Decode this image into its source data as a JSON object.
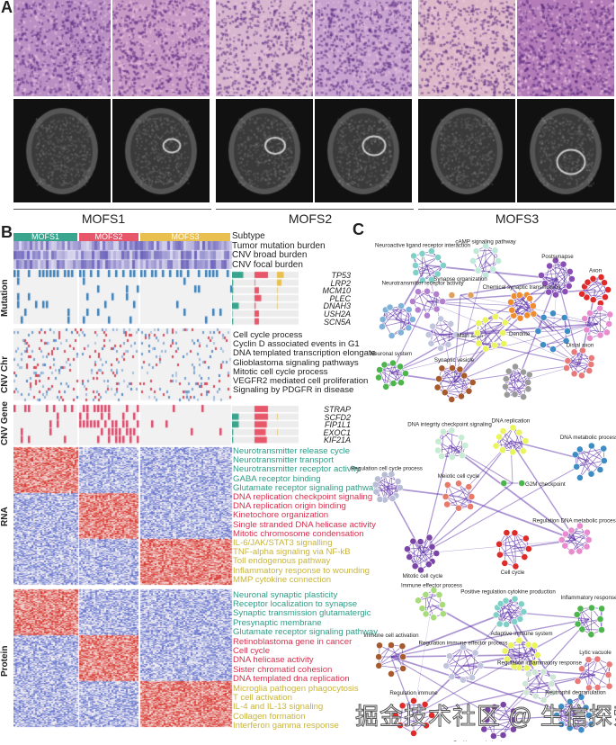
{
  "panels": {
    "a": "A",
    "b": "B",
    "c": "C"
  },
  "subtypes": [
    {
      "name": "MOFS1",
      "color": "#3aa58e"
    },
    {
      "name": "MOFS2",
      "color": "#e8566a"
    },
    {
      "name": "MOFS3",
      "color": "#e9bf4f"
    }
  ],
  "panel_b": {
    "track_labels": [
      "Subtype",
      "Tumor mutation burden",
      "CNV broad burden",
      "CNV focal burden"
    ],
    "section_labels": {
      "mutation": "Mutation",
      "cnv_chr": "CNV Chr",
      "cnv_gene": "CNV Gene",
      "rna": "RNA",
      "protein": "Protein"
    },
    "mutation_genes": [
      "TP53",
      "LRP2",
      "MCM10",
      "PLEC",
      "DNAH3",
      "USH2A",
      "SCN5A"
    ],
    "cnv_chr_pathways": [
      "Cell cycle process",
      "Cyclin D associated events in G1",
      "DNA templated transcription elongate",
      "Glioblastoma signaling pathways",
      "Mitotic cell cycle process",
      "VEGFR2 mediated cell proliferation",
      "Signaling by PDGFR in disease"
    ],
    "cnv_genes": [
      "STRAP",
      "SCFD2",
      "FIP1L1",
      "EXOC1",
      "KIF21A"
    ],
    "rna_pathways": [
      [
        "Neurotransmitter release cycle",
        "Neurotransmitter transport",
        "Neurotransmitter receptor activity",
        "GABA receptor binding",
        "Glutamate receptor signaling pathway"
      ],
      [
        "DNA replication checkpoint signaling",
        "DNA replication origin binding",
        "Kinetochore organization",
        "Single stranded DNA helicase activity",
        "Mitotic chromosome condensation"
      ],
      [
        "IL-6/JAK/STAT3 signalling",
        "TNF-alpha signaling via NF-kB",
        "Toll endogenous pathway",
        "Inflammatory response to wounding",
        "MMP cytokine connection"
      ]
    ],
    "protein_pathways": [
      [
        "Neuronal synaptic plasticity",
        "Receptor localization to synapse",
        "Synaptic transmission glutamatergic",
        "Presynaptic membrane",
        "Glutamate receptor signaling pathway"
      ],
      [
        "Retinoblastoma gene in cancer",
        "Cell cycle",
        "DNA helicase activity",
        "Sister chromatid cohesion",
        "DNA templated dna replication"
      ],
      [
        "Microglia pathogen phagocytosis",
        "T cell activation",
        "IL-4 and IL-13 signaling",
        "Collagen formation",
        "Interferon gamma response"
      ]
    ],
    "text_colors": [
      "#2e9c86",
      "#d9304f",
      "#c9b43c"
    ],
    "heat_colors": {
      "high": "#d73027",
      "low": "#3b4cc0",
      "mut": "#3a7fb8",
      "cnv": "#d94a6a"
    }
  },
  "panel_c": {
    "networks": [
      {
        "clusters": [
          {
            "label": "Neuroactive ligand receptor interaction",
            "color": "#7fd1c8"
          },
          {
            "label": "cAMP signaling pathway",
            "color": "#bfe9d9"
          },
          {
            "label": "Postsynapse",
            "color": "#8a4fb5"
          },
          {
            "label": "Axon",
            "color": "#e02b2b"
          },
          {
            "label": "Synapse organization",
            "color": "#e0a060"
          },
          {
            "label": "Neurotransmitter receptor activity",
            "color": "#b27fcf"
          },
          {
            "label": "",
            "color": "#7fb1d9"
          },
          {
            "label": "Main axon",
            "color": "#c0c4dc"
          },
          {
            "label": "Dendrite",
            "color": "#e9f55a"
          },
          {
            "label": "Chemical synaptic transmission",
            "color": "#ef8c2e"
          },
          {
            "label": "",
            "color": "#3e8cc4"
          },
          {
            "label": "",
            "color": "#e88ccf"
          },
          {
            "label": "Neuronal system",
            "color": "#4cb54c"
          },
          {
            "label": "Synaptic vesicle",
            "color": "#a65a2e"
          },
          {
            "label": "",
            "color": "#9a9a9a"
          },
          {
            "label": "Distal axon",
            "color": "#e87a7a"
          }
        ]
      },
      {
        "clusters": [
          {
            "label": "DNA integrity checkpoint signaling",
            "color": "#c6ecd4"
          },
          {
            "label": "DNA replication",
            "color": "#e9f55a"
          },
          {
            "label": "DNA metabolic process",
            "color": "#3e8cc4"
          },
          {
            "label": "Regulation cell cycle process",
            "color": "#b8bcd4"
          },
          {
            "label": "Meiotic cell cycle",
            "color": "#e87a6a"
          },
          {
            "label": "G2M checkpoint",
            "color": "#4cb54c"
          },
          {
            "label": "Regulation DNA metabolic process",
            "color": "#e88ccf"
          },
          {
            "label": "Mitotic cell cycle",
            "color": "#7b45a8"
          },
          {
            "label": "Cell cycle",
            "color": "#e02b2b"
          }
        ]
      },
      {
        "clusters": [
          {
            "label": "Immune effector process",
            "color": "#a8dc7a"
          },
          {
            "label": "Positive regulation cytokine production",
            "color": "#7fd1c8"
          },
          {
            "label": "Inflammatory response",
            "color": "#4cb54c"
          },
          {
            "label": "Immune cell activation",
            "color": "#a65a2e"
          },
          {
            "label": "Regulation immune effector process",
            "color": "#c0c4dc"
          },
          {
            "label": "Adaptive immune system",
            "color": "#e9f55a"
          },
          {
            "label": "Lytic vacuole",
            "color": "#e87a7a"
          },
          {
            "label": "Regulation inflammatory response",
            "color": "#cfe6d6"
          },
          {
            "label": "Regulation immune",
            "color": "#e02b2b"
          },
          {
            "label": "Positive regulation immune response",
            "color": "#7b45a8"
          },
          {
            "label": "Neutrophil degranulation",
            "color": "#3e8cc4"
          }
        ]
      }
    ],
    "edge_color": "#5b2fa8"
  },
  "watermark": "掘金技术社区 @ 生信探索"
}
